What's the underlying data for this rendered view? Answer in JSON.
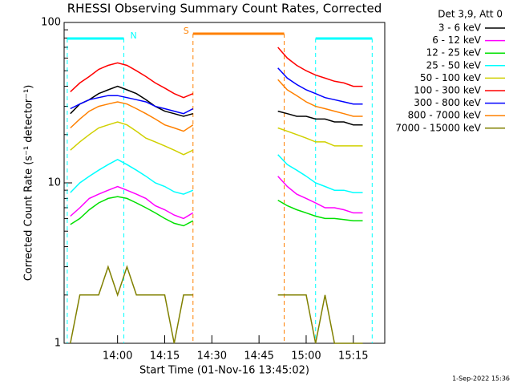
{
  "chart_data": {
    "type": "line",
    "title": "RHESSI Observing Summary Count Rates, Corrected",
    "x_label": "Start Time (01-Nov-16 13:45:02)",
    "y_label": "Corrected Count Rate (s⁻¹ detector⁻¹)",
    "legend_title": "Det 3,9, Att 0",
    "footer": "1-Sep-2022 15:36",
    "log_y": true,
    "xlim": [
      "13:43",
      "15:25"
    ],
    "xticks": [
      "14:00",
      "14:15",
      "14:30",
      "14:45",
      "15:00",
      "15:15"
    ],
    "ylim": [
      1,
      100
    ],
    "yticks": [
      1,
      10,
      100
    ],
    "yminor": [
      2,
      3,
      4,
      5,
      6,
      7,
      8,
      9,
      20,
      30,
      40,
      50,
      60,
      70,
      80,
      90
    ],
    "flags": [
      {
        "label": "N",
        "start": "13:44",
        "end": "14:02",
        "color": "#00ffff"
      },
      {
        "label": "S",
        "start": "14:24",
        "end": "14:53",
        "color": "#ff8000"
      },
      {
        "label": "",
        "start": "15:03",
        "end": "15:21",
        "color": "#00ffff"
      }
    ],
    "x": [
      "13:45",
      "13:48",
      "13:51",
      "13:54",
      "13:57",
      "14:00",
      "14:03",
      "14:06",
      "14:09",
      "14:12",
      "14:15",
      "14:18",
      "14:21",
      "14:24",
      "14:36",
      "14:51",
      "14:54",
      "14:57",
      "15:00",
      "15:03",
      "15:06",
      "15:09",
      "15:12",
      "15:15",
      "15:18"
    ],
    "series": [
      {
        "name": "3 - 6 keV",
        "color": "#000000",
        "values": [
          27,
          31,
          33,
          36,
          38,
          40,
          38,
          36,
          33,
          30,
          28,
          27,
          26,
          27,
          null,
          28,
          27,
          26,
          26,
          25,
          25,
          24,
          24,
          23,
          23
        ]
      },
      {
        "name": "6 - 12 keV",
        "color": "#ff00ff",
        "values": [
          6.2,
          7,
          8,
          8.5,
          9,
          9.5,
          9,
          8.5,
          8,
          7.2,
          6.8,
          6.3,
          6,
          6.5,
          null,
          11,
          9.5,
          8.5,
          8,
          7.5,
          7,
          7,
          6.8,
          6.5,
          6.5
        ]
      },
      {
        "name": "12 - 25 keV",
        "color": "#00e000",
        "values": [
          5.5,
          6,
          6.8,
          7.5,
          8,
          8.2,
          8,
          7.5,
          7,
          6.5,
          6,
          5.6,
          5.4,
          5.8,
          null,
          7.8,
          7.2,
          6.8,
          6.5,
          6.2,
          6,
          6,
          5.9,
          5.8,
          5.8
        ]
      },
      {
        "name": "25 - 50 keV",
        "color": "#00ffff",
        "values": [
          8.7,
          10,
          11,
          12,
          13,
          14,
          13,
          12,
          11,
          10,
          9.5,
          8.8,
          8.5,
          9,
          null,
          15,
          13,
          12,
          11,
          10,
          9.5,
          9,
          9,
          8.7,
          8.7
        ]
      },
      {
        "name": "50 - 100 keV",
        "color": "#d0d000",
        "values": [
          16,
          18,
          20,
          22,
          23,
          24,
          23,
          21,
          19,
          18,
          17,
          16,
          15,
          16,
          null,
          22,
          21,
          20,
          19,
          18,
          18,
          17,
          17,
          17,
          17
        ]
      },
      {
        "name": "100 - 300 keV",
        "color": "#ff0000",
        "values": [
          37,
          42,
          46,
          51,
          54,
          56,
          54,
          50,
          46,
          42,
          39,
          36,
          34,
          36,
          null,
          70,
          60,
          54,
          50,
          47,
          45,
          43,
          42,
          40,
          40
        ]
      },
      {
        "name": "300 - 800 keV",
        "color": "#0000ff",
        "values": [
          29,
          31,
          33,
          34,
          35,
          35,
          34,
          33,
          32,
          30,
          29,
          28,
          27,
          29,
          null,
          52,
          45,
          41,
          38,
          36,
          34,
          33,
          32,
          31,
          31
        ]
      },
      {
        "name": "800 - 7000 keV",
        "color": "#ff8000",
        "values": [
          22,
          25,
          28,
          30,
          31,
          32,
          31,
          29,
          27,
          25,
          23,
          22,
          21,
          23,
          null,
          44,
          38,
          35,
          32,
          30,
          29,
          28,
          27,
          26,
          26
        ]
      },
      {
        "name": "7000 - 15000 keV",
        "color": "#808000",
        "values": [
          1,
          2,
          2,
          2,
          3,
          2,
          3,
          2,
          2,
          2,
          2,
          1,
          2,
          2,
          null,
          2,
          2,
          2,
          2,
          1,
          2,
          1,
          1,
          1,
          1
        ]
      }
    ]
  }
}
